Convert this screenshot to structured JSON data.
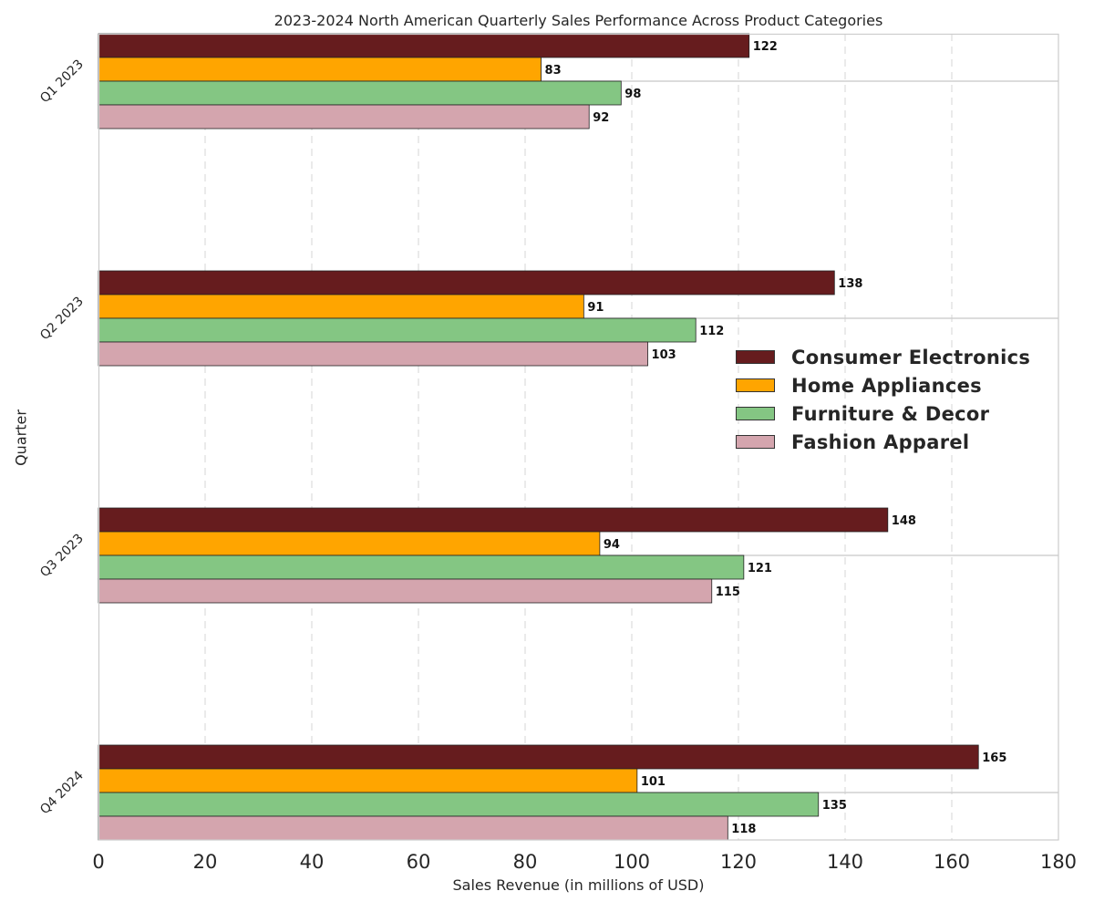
{
  "chart_data": {
    "type": "bar",
    "orientation": "horizontal",
    "title": "2023-2024 North American Quarterly Sales Performance Across Product Categories",
    "xlabel": "Sales Revenue (in millions of USD)",
    "ylabel": "Quarter",
    "categories": [
      "Q1 2023",
      "Q2 2023",
      "Q3 2023",
      "Q4 2024"
    ],
    "series": [
      {
        "name": "Consumer Electronics",
        "color": "#661c1e",
        "values": [
          122,
          138,
          148,
          165
        ]
      },
      {
        "name": "Home Appliances",
        "color": "#ffa500",
        "values": [
          83,
          91,
          94,
          101
        ]
      },
      {
        "name": "Furniture & Decor",
        "color": "#84c683",
        "values": [
          98,
          112,
          121,
          135
        ]
      },
      {
        "name": "Fashion Apparel",
        "color": "#d4a5ae",
        "values": [
          92,
          103,
          115,
          118
        ]
      }
    ],
    "xlim": [
      0,
      180
    ],
    "xticks": [
      0,
      20,
      40,
      60,
      80,
      100,
      120,
      140,
      160,
      180
    ],
    "grid": "vertical dashed",
    "legend_position": "right"
  }
}
